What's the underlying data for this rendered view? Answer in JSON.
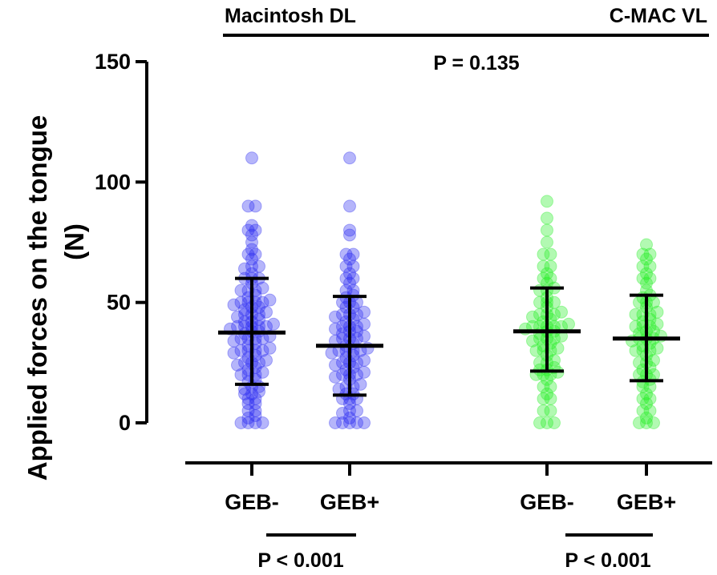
{
  "chart_data": {
    "type": "scatter",
    "ylabel": "Applied forces on the tongue",
    "ylabel_unit": "(N)",
    "ylim": [
      0,
      150
    ],
    "yticks": [
      0,
      50,
      100,
      150
    ],
    "grid": false,
    "group_labels": [
      {
        "name": "Macintosh DL"
      },
      {
        "name": "C-MAC VL"
      }
    ],
    "comparison_top": "P = 0.135",
    "comparisons_bottom": [
      {
        "label": "P < 0.001"
      },
      {
        "label": "P < 0.001"
      }
    ],
    "series": [
      {
        "name": "GEB-",
        "group": "Macintosh DL",
        "color": "#2b2bf0",
        "mean": 37.5,
        "sd_low": 16,
        "sd_high": 60,
        "values": [
          0,
          0,
          0,
          0,
          2,
          3,
          5,
          5,
          8,
          8,
          10,
          10,
          12,
          12,
          13,
          14,
          15,
          15,
          17,
          18,
          20,
          20,
          20,
          21,
          22,
          23,
          24,
          25,
          25,
          25,
          26,
          27,
          28,
          29,
          30,
          30,
          30,
          30,
          31,
          32,
          33,
          34,
          35,
          35,
          35,
          35,
          36,
          37,
          38,
          38,
          39,
          40,
          40,
          40,
          40,
          40,
          41,
          42,
          42,
          43,
          44,
          45,
          45,
          45,
          46,
          47,
          48,
          48,
          49,
          50,
          50,
          50,
          50,
          51,
          52,
          53,
          55,
          55,
          55,
          56,
          58,
          60,
          60,
          60,
          62,
          64,
          65,
          65,
          68,
          70,
          70,
          72,
          75,
          78,
          80,
          80,
          82,
          90,
          90,
          110
        ]
      },
      {
        "name": "GEB+",
        "group": "Macintosh DL",
        "color": "#2b2bf0",
        "mean": 32,
        "sd_low": 11.5,
        "sd_high": 52.5,
        "values": [
          0,
          0,
          0,
          0,
          0,
          2,
          4,
          5,
          5,
          8,
          10,
          10,
          10,
          12,
          12,
          14,
          15,
          15,
          16,
          18,
          19,
          20,
          20,
          20,
          21,
          22,
          23,
          24,
          25,
          25,
          25,
          26,
          27,
          28,
          29,
          30,
          30,
          30,
          30,
          31,
          32,
          33,
          34,
          35,
          35,
          35,
          36,
          37,
          38,
          38,
          39,
          40,
          40,
          40,
          41,
          42,
          43,
          44,
          45,
          45,
          45,
          46,
          48,
          48,
          50,
          50,
          50,
          52,
          53,
          55,
          55,
          58,
          60,
          60,
          62,
          65,
          65,
          68,
          70,
          70,
          78,
          80,
          90,
          110
        ]
      },
      {
        "name": "GEB-",
        "group": "C-MAC VL",
        "color": "#22ee22",
        "mean": 38,
        "sd_low": 21.5,
        "sd_high": 56,
        "values": [
          0,
          0,
          0,
          5,
          5,
          10,
          10,
          12,
          15,
          15,
          18,
          20,
          20,
          20,
          21,
          22,
          22,
          23,
          25,
          25,
          26,
          28,
          30,
          30,
          30,
          31,
          32,
          33,
          34,
          35,
          35,
          35,
          36,
          37,
          38,
          38,
          39,
          40,
          40,
          40,
          40,
          40,
          41,
          42,
          43,
          44,
          45,
          45,
          45,
          46,
          48,
          50,
          50,
          50,
          52,
          55,
          55,
          56,
          58,
          60,
          60,
          62,
          65,
          65,
          70,
          70,
          75,
          80,
          85,
          92
        ]
      },
      {
        "name": "GEB+",
        "group": "C-MAC VL",
        "color": "#22ee22",
        "mean": 35,
        "sd_low": 17.5,
        "sd_high": 53,
        "values": [
          0,
          0,
          0,
          2,
          5,
          5,
          8,
          10,
          10,
          12,
          15,
          15,
          17,
          18,
          20,
          20,
          20,
          22,
          23,
          25,
          25,
          26,
          28,
          30,
          30,
          30,
          31,
          32,
          33,
          34,
          35,
          35,
          35,
          36,
          37,
          38,
          38,
          40,
          40,
          40,
          41,
          42,
          43,
          45,
          45,
          45,
          46,
          48,
          50,
          50,
          50,
          52,
          53,
          55,
          58,
          60,
          60,
          62,
          65,
          65,
          68,
          70,
          70,
          74
        ]
      }
    ]
  }
}
